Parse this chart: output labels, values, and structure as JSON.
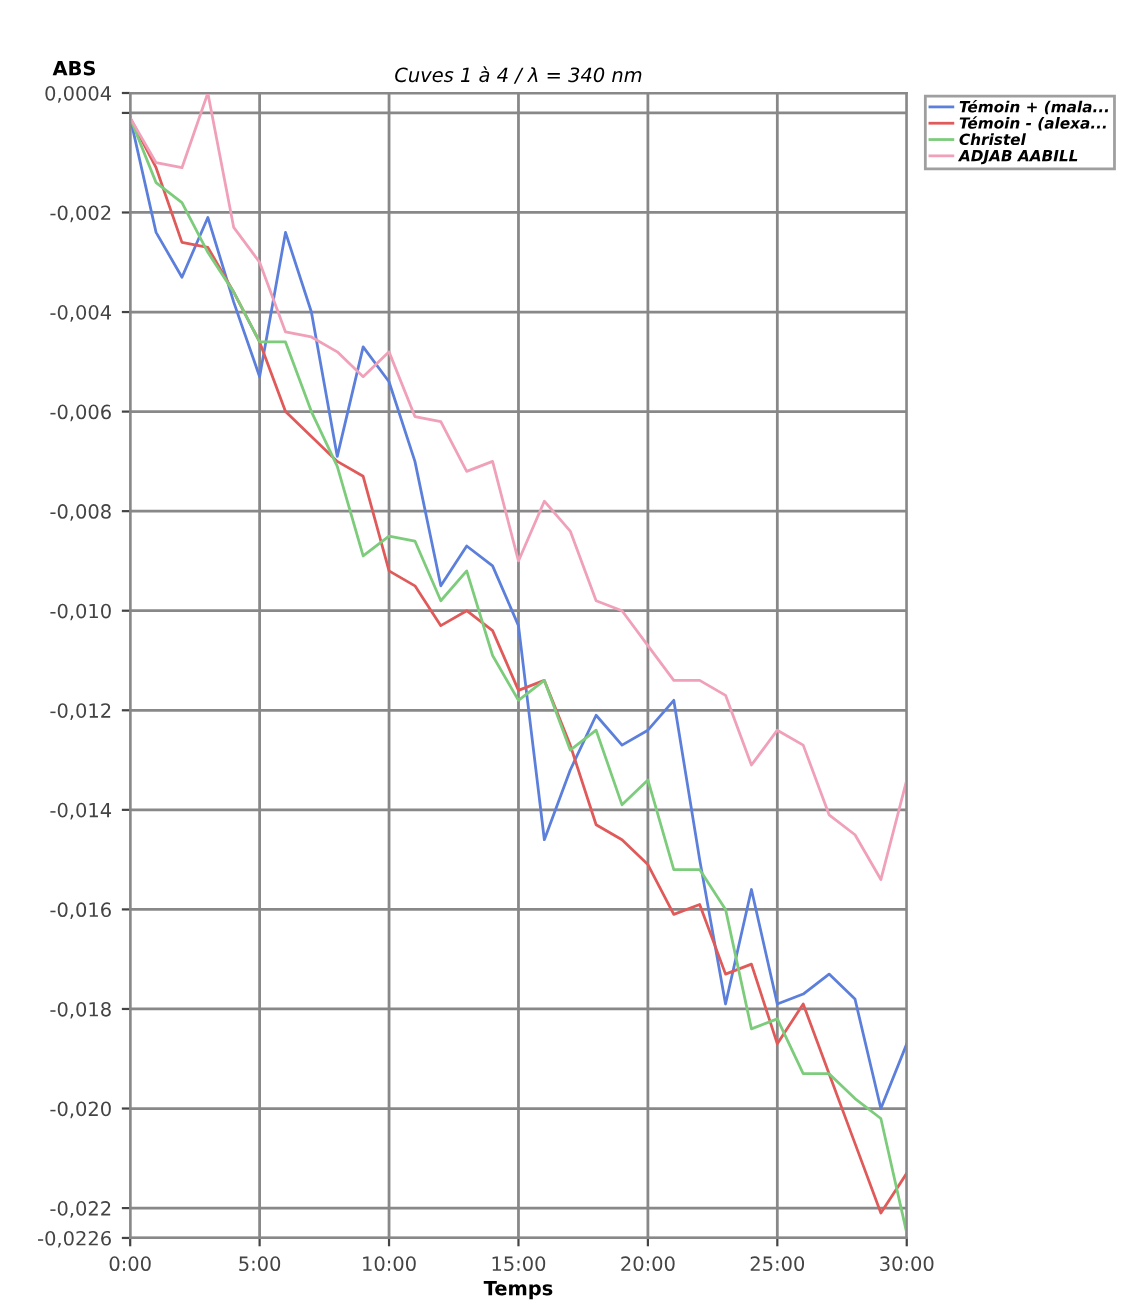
{
  "chart_data": {
    "type": "line",
    "title": "Cuves 1 à 4 / λ = 340 nm",
    "xlabel": "Temps",
    "ylabel": "ABS",
    "x": [
      0,
      1,
      2,
      3,
      4,
      5,
      6,
      7,
      8,
      9,
      10,
      11,
      12,
      13,
      14,
      15,
      16,
      17,
      18,
      19,
      20,
      21,
      22,
      23,
      24,
      25,
      26,
      27,
      28,
      29,
      30
    ],
    "series": [
      {
        "name": "Témoin + (mala...",
        "color": "#5b7fdb",
        "values": [
          -0.0001,
          -0.0024,
          -0.0033,
          -0.0021,
          -0.0038,
          -0.0053,
          -0.0024,
          -0.004,
          -0.0069,
          -0.0047,
          -0.0054,
          -0.007,
          -0.0095,
          -0.0087,
          -0.0091,
          -0.0103,
          -0.0146,
          -0.0132,
          -0.0121,
          -0.0127,
          -0.0124,
          -0.0118,
          -0.015,
          -0.0179,
          -0.0156,
          -0.0179,
          -0.0177,
          -0.0173,
          -0.0178,
          -0.02,
          -0.0187
        ]
      },
      {
        "name": "Témoin - (alexa...",
        "color": "#e05a5a",
        "values": [
          -0.0001,
          -0.0011,
          -0.0026,
          -0.0027,
          -0.0036,
          -0.0046,
          -0.006,
          -0.0065,
          -0.007,
          -0.0073,
          -0.0092,
          -0.0095,
          -0.0103,
          -0.01,
          -0.0104,
          -0.0116,
          -0.0114,
          -0.0127,
          -0.0143,
          -0.0146,
          -0.0151,
          -0.0161,
          -0.0159,
          -0.0173,
          -0.0171,
          -0.0187,
          -0.0179,
          -0.0193,
          -0.0207,
          -0.0221,
          -0.0213
        ]
      },
      {
        "name": "Christel",
        "color": "#7ccc7c",
        "values": [
          -0.0001,
          -0.0014,
          -0.0018,
          -0.0028,
          -0.0036,
          -0.0046,
          -0.0046,
          -0.006,
          -0.0071,
          -0.0089,
          -0.0085,
          -0.0086,
          -0.0098,
          -0.0092,
          -0.0109,
          -0.0118,
          -0.0114,
          -0.0128,
          -0.0124,
          -0.0139,
          -0.0134,
          -0.0152,
          -0.0152,
          -0.016,
          -0.0184,
          -0.0182,
          -0.0193,
          -0.0193,
          -0.0198,
          -0.0202,
          -0.0225
        ]
      },
      {
        "name": "ADJAB AABILL",
        "color": "#f0a0b8",
        "values": [
          -0.0001,
          -0.001,
          -0.0011,
          0.0004,
          -0.0023,
          -0.003,
          -0.0044,
          -0.0045,
          -0.0048,
          -0.0053,
          -0.0048,
          -0.0061,
          -0.0062,
          -0.0072,
          -0.007,
          -0.009,
          -0.0078,
          -0.0084,
          -0.0098,
          -0.01,
          -0.0107,
          -0.0114,
          -0.0114,
          -0.0117,
          -0.0131,
          -0.0124,
          -0.0127,
          -0.0141,
          -0.0145,
          -0.0154,
          -0.0134
        ]
      }
    ],
    "xlim": [
      0,
      30
    ],
    "xticks": [
      {
        "value": 0,
        "label": "0:00"
      },
      {
        "value": 5,
        "label": "5:00"
      },
      {
        "value": 10,
        "label": "10:00"
      },
      {
        "value": 15,
        "label": "15:00"
      },
      {
        "value": 20,
        "label": "20:00"
      },
      {
        "value": 25,
        "label": "25:00"
      },
      {
        "value": 30,
        "label": "30:00"
      }
    ],
    "ylim": [
      -0.0226,
      0.0004
    ],
    "yticks": [
      {
        "value": 0.0004,
        "label": "0,0004"
      },
      {
        "value": 0,
        "label": null
      },
      {
        "value": -0.002,
        "label": "-0,002"
      },
      {
        "value": -0.004,
        "label": "-0,004"
      },
      {
        "value": -0.006,
        "label": "-0,006"
      },
      {
        "value": -0.008,
        "label": "-0,008"
      },
      {
        "value": -0.01,
        "label": "-0,010"
      },
      {
        "value": -0.012,
        "label": "-0,012"
      },
      {
        "value": -0.014,
        "label": "-0,014"
      },
      {
        "value": -0.016,
        "label": "-0,016"
      },
      {
        "value": -0.018,
        "label": "-0,018"
      },
      {
        "value": -0.02,
        "label": "-0,020"
      },
      {
        "value": -0.022,
        "label": "-0,022"
      },
      {
        "value": -0.0226,
        "label": "-0,0226"
      }
    ],
    "grid": true,
    "legend": "right",
    "marker": "none",
    "line_style": "solid"
  }
}
